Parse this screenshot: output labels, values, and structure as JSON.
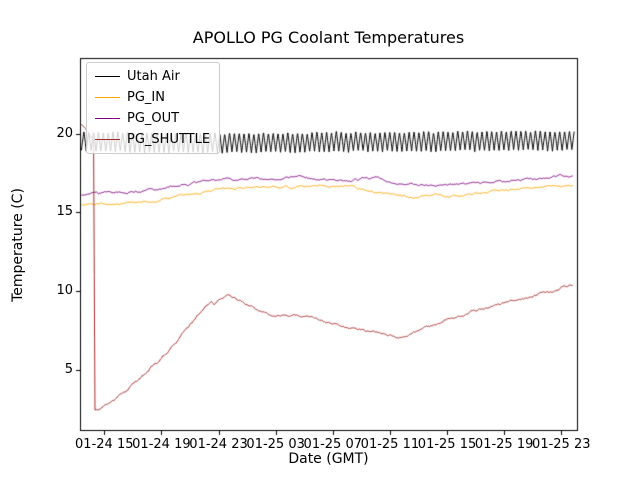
{
  "page": {
    "background": "#ffffff"
  },
  "chart_data": {
    "type": "line",
    "title": "APOLLO PG Coolant Temperatures",
    "xlabel": "Date (GMT)",
    "ylabel": "Temperature (C)",
    "grid": false,
    "legend_position": "upper left",
    "x_unit": "hours since 01-24 00:00 GMT",
    "xlim": [
      13.3,
      48.1
    ],
    "ylim": [
      1.2,
      24.8
    ],
    "x_ticks": [
      {
        "value": 15,
        "label": "01-24 15"
      },
      {
        "value": 19,
        "label": "01-24 19"
      },
      {
        "value": 23,
        "label": "01-24 23"
      },
      {
        "value": 27,
        "label": "01-25 03"
      },
      {
        "value": 31,
        "label": "01-25 07"
      },
      {
        "value": 35,
        "label": "01-25 11"
      },
      {
        "value": 39,
        "label": "01-25 15"
      },
      {
        "value": 43,
        "label": "01-25 19"
      },
      {
        "value": 47,
        "label": "01-25 23"
      }
    ],
    "y_ticks": [
      {
        "value": 5,
        "label": "5"
      },
      {
        "value": 10,
        "label": "10"
      },
      {
        "value": 15,
        "label": "15"
      },
      {
        "value": 20,
        "label": "20"
      }
    ],
    "series": [
      {
        "name": "Utah Air",
        "color": "#000000",
        "mode": "oscillation",
        "amplitude": 0.62,
        "period": 0.34,
        "jitter": 0.06,
        "points": [
          [
            13.4,
            19.55
          ],
          [
            16,
            19.5
          ],
          [
            20,
            19.45
          ],
          [
            24,
            19.4
          ],
          [
            28,
            19.45
          ],
          [
            32,
            19.5
          ],
          [
            36,
            19.5
          ],
          [
            40,
            19.55
          ],
          [
            44,
            19.6
          ],
          [
            47.9,
            19.55
          ]
        ]
      },
      {
        "name": "PG_IN",
        "color": "#ffa500",
        "mode": "line",
        "jitter": 0.09,
        "points": [
          [
            13.4,
            15.45
          ],
          [
            15,
            15.55
          ],
          [
            16,
            15.6
          ],
          [
            17,
            15.65
          ],
          [
            18,
            15.75
          ],
          [
            19,
            15.85
          ],
          [
            20,
            16.0
          ],
          [
            21,
            16.15
          ],
          [
            22,
            16.3
          ],
          [
            23,
            16.45
          ],
          [
            24,
            16.55
          ],
          [
            25,
            16.6
          ],
          [
            26,
            16.62
          ],
          [
            27,
            16.65
          ],
          [
            28,
            16.65
          ],
          [
            29,
            16.68
          ],
          [
            30,
            16.65
          ],
          [
            31,
            16.6
          ],
          [
            32,
            16.6
          ],
          [
            33,
            16.45
          ],
          [
            34,
            16.3
          ],
          [
            35,
            16.2
          ],
          [
            36,
            16.1
          ],
          [
            37,
            16.05
          ],
          [
            38,
            16.1
          ],
          [
            39,
            16.05
          ],
          [
            40,
            16.1
          ],
          [
            41,
            16.2
          ],
          [
            42,
            16.35
          ],
          [
            43,
            16.45
          ],
          [
            44,
            16.55
          ],
          [
            45,
            16.6
          ],
          [
            46,
            16.65
          ],
          [
            47,
            16.7
          ],
          [
            47.8,
            16.8
          ]
        ]
      },
      {
        "name": "PG_OUT",
        "color": "#800080",
        "mode": "line",
        "jitter": 0.09,
        "points": [
          [
            13.4,
            16.1
          ],
          [
            15,
            16.2
          ],
          [
            16,
            16.25
          ],
          [
            17,
            16.3
          ],
          [
            18,
            16.4
          ],
          [
            19,
            16.5
          ],
          [
            20,
            16.65
          ],
          [
            21,
            16.8
          ],
          [
            22,
            16.95
          ],
          [
            23,
            17.1
          ],
          [
            23.5,
            17.15
          ],
          [
            24,
            17.05
          ],
          [
            25,
            17.1
          ],
          [
            26,
            17.15
          ],
          [
            27,
            17.2
          ],
          [
            28,
            17.3
          ],
          [
            28.5,
            17.35
          ],
          [
            29,
            17.3
          ],
          [
            30,
            17.2
          ],
          [
            31,
            17.1
          ],
          [
            32,
            17.1
          ],
          [
            33,
            17.1
          ],
          [
            34,
            17.15
          ],
          [
            34.5,
            17.1
          ],
          [
            35,
            16.95
          ],
          [
            36,
            16.8
          ],
          [
            37,
            16.7
          ],
          [
            38,
            16.75
          ],
          [
            39,
            16.8
          ],
          [
            40,
            16.85
          ],
          [
            41,
            16.9
          ],
          [
            42,
            16.95
          ],
          [
            43,
            17.0
          ],
          [
            44,
            17.1
          ],
          [
            45,
            17.15
          ],
          [
            46,
            17.2
          ],
          [
            47,
            17.25
          ],
          [
            47.8,
            17.35
          ]
        ]
      },
      {
        "name": "PG_SHUTTLE",
        "color": "#a52a2a",
        "mode": "line",
        "jitter": 0.1,
        "points": [
          [
            13.4,
            20.6
          ],
          [
            13.7,
            20.2
          ],
          [
            14.0,
            19.8
          ],
          [
            14.28,
            19.5
          ],
          [
            14.32,
            2.4
          ],
          [
            14.6,
            2.45
          ],
          [
            15,
            2.7
          ],
          [
            15.5,
            3.0
          ],
          [
            16,
            3.35
          ],
          [
            16.5,
            3.7
          ],
          [
            17,
            4.1
          ],
          [
            17.5,
            4.5
          ],
          [
            18,
            4.95
          ],
          [
            18.5,
            5.4
          ],
          [
            19,
            5.8
          ],
          [
            19.5,
            6.25
          ],
          [
            20,
            6.75
          ],
          [
            20.5,
            7.3
          ],
          [
            21,
            7.85
          ],
          [
            21.5,
            8.4
          ],
          [
            22,
            8.9
          ],
          [
            22.5,
            9.3
          ],
          [
            22.7,
            9.1
          ],
          [
            23,
            9.5
          ],
          [
            23.3,
            9.65
          ],
          [
            23.7,
            9.7
          ],
          [
            24,
            9.6
          ],
          [
            24.5,
            9.4
          ],
          [
            25,
            9.2
          ],
          [
            25.5,
            9.0
          ],
          [
            26,
            8.75
          ],
          [
            26.5,
            8.55
          ],
          [
            27,
            8.4
          ],
          [
            27.5,
            8.45
          ],
          [
            28,
            8.5
          ],
          [
            28.5,
            8.55
          ],
          [
            29,
            8.5
          ],
          [
            29.5,
            8.4
          ],
          [
            30,
            8.3
          ],
          [
            30.5,
            8.1
          ],
          [
            31,
            7.9
          ],
          [
            31.5,
            7.8
          ],
          [
            32,
            7.7
          ],
          [
            33,
            7.5
          ],
          [
            34,
            7.3
          ],
          [
            35,
            7.1
          ],
          [
            35.5,
            7.05
          ],
          [
            36,
            7.1
          ],
          [
            36.5,
            7.25
          ],
          [
            37,
            7.45
          ],
          [
            37.5,
            7.65
          ],
          [
            38,
            7.85
          ],
          [
            38.5,
            8.05
          ],
          [
            39,
            8.2
          ],
          [
            39.5,
            8.35
          ],
          [
            40,
            8.5
          ],
          [
            40.5,
            8.65
          ],
          [
            41,
            8.8
          ],
          [
            41.5,
            8.9
          ],
          [
            42,
            9.0
          ],
          [
            42.5,
            9.15
          ],
          [
            43,
            9.3
          ],
          [
            43.5,
            9.4
          ],
          [
            44,
            9.5
          ],
          [
            44.5,
            9.55
          ],
          [
            45,
            9.6
          ],
          [
            45.3,
            9.7
          ],
          [
            45.6,
            9.85
          ],
          [
            46,
            10.0
          ],
          [
            46.5,
            10.1
          ],
          [
            47,
            10.25
          ],
          [
            47.8,
            10.45
          ]
        ]
      }
    ]
  }
}
